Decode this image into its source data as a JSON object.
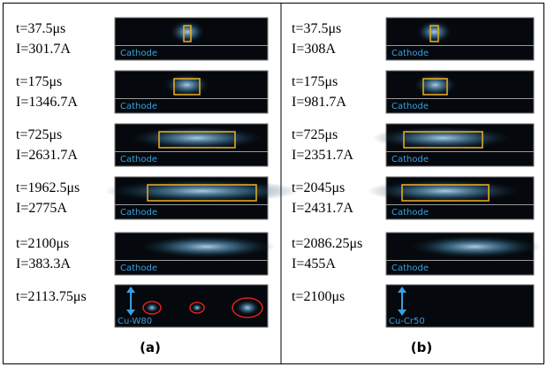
{
  "panels": [
    {
      "label": "(a)",
      "rows": [
        {
          "time": "t=37.5μs",
          "current": "I=301.7A",
          "tag": "Cathode"
        },
        {
          "time": "t=175μs",
          "current": "I=1346.7A",
          "tag": "Cathode"
        },
        {
          "time": "t=725μs",
          "current": "I=2631.7A",
          "tag": "Cathode"
        },
        {
          "time": "t=1962.5μs",
          "current": "I=2775A",
          "tag": "Cathode"
        },
        {
          "time": "t=2100μs",
          "current": "I=383.3A",
          "tag": "Cathode"
        },
        {
          "time": "t=2113.75μs",
          "tag": "Cu-W80"
        }
      ]
    },
    {
      "label": "(b)",
      "rows": [
        {
          "time": "t=37.5μs",
          "current": "I=308A",
          "tag": "Cathode"
        },
        {
          "time": "t=175μs",
          "current": "I=981.7A",
          "tag": "Cathode"
        },
        {
          "time": "t=725μs",
          "current": "I=2351.7A",
          "tag": "Cathode"
        },
        {
          "time": "t=2045μs",
          "current": "I=2431.7A",
          "tag": "Cathode"
        },
        {
          "time": "t=2086.25μs",
          "current": "I=455A",
          "tag": "Cathode"
        },
        {
          "time": "t=2100μs",
          "tag": "Cu-Cr50"
        }
      ]
    }
  ]
}
